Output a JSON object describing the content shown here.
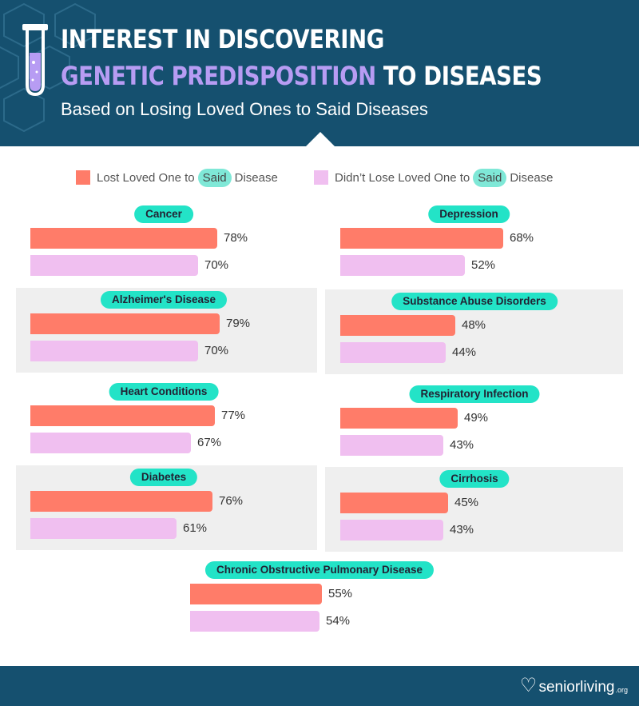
{
  "header": {
    "title_line1": "INTEREST IN DISCOVERING",
    "title_line2_highlight": "GENETIC PREDISPOSITION",
    "title_line2_rest": " TO DISEASES",
    "subtitle": "Based on Losing Loved Ones to Said Diseases",
    "icon": "test-tube-icon"
  },
  "legend": {
    "lost": {
      "pre": "Lost Loved One to",
      "pill": "Said",
      "post": "Disease"
    },
    "notlost": {
      "pre": "Didn’t Lose Loved One to",
      "pill": "Said",
      "post": "Disease"
    }
  },
  "colors": {
    "lost": "#ff7c69",
    "notlost": "#f0bff0",
    "pill": "#23e3c7",
    "header": "#15506f",
    "panel": "#efefef"
  },
  "chart_data": {
    "type": "bar",
    "orientation": "horizontal",
    "title": "INTEREST IN DISCOVERING GENETIC PREDISPOSITION TO DISEASES",
    "subtitle": "Based on Losing Loved Ones to Said Diseases",
    "series": [
      {
        "name": "Lost Loved One to Said Disease"
      },
      {
        "name": "Didn’t Lose Loved One to Said Disease"
      }
    ],
    "value_suffix": "%",
    "xlim": [
      0,
      100
    ],
    "groups": [
      {
        "category": "Cancer",
        "lost": 78,
        "notlost": 70,
        "lost_label": "78%",
        "notlost_label": "70%"
      },
      {
        "category": "Depression",
        "lost": 68,
        "notlost": 52,
        "lost_label": "68%",
        "notlost_label": "52%"
      },
      {
        "category": "Alzheimer's Disease",
        "lost": 79,
        "notlost": 70,
        "lost_label": "79%",
        "notlost_label": "70%"
      },
      {
        "category": "Substance Abuse Disorders",
        "lost": 48,
        "notlost": 44,
        "lost_label": "48%",
        "notlost_label": "44%"
      },
      {
        "category": "Heart Conditions",
        "lost": 77,
        "notlost": 67,
        "lost_label": "77%",
        "notlost_label": "67%"
      },
      {
        "category": "Respiratory Infection",
        "lost": 49,
        "notlost": 43,
        "lost_label": "49%",
        "notlost_label": "43%"
      },
      {
        "category": "Diabetes",
        "lost": 76,
        "notlost": 61,
        "lost_label": "76%",
        "notlost_label": "61%"
      },
      {
        "category": "Cirrhosis",
        "lost": 45,
        "notlost": 43,
        "lost_label": "45%",
        "notlost_label": "43%"
      },
      {
        "category": "Chronic Obstructive Pulmonary Disease",
        "lost": 55,
        "notlost": 54,
        "lost_label": "55%",
        "notlost_label": "54%"
      }
    ]
  },
  "footer": {
    "logo_text": "seniorliving",
    "logo_suffix": ".org",
    "logo_icon": "heart-icon"
  }
}
